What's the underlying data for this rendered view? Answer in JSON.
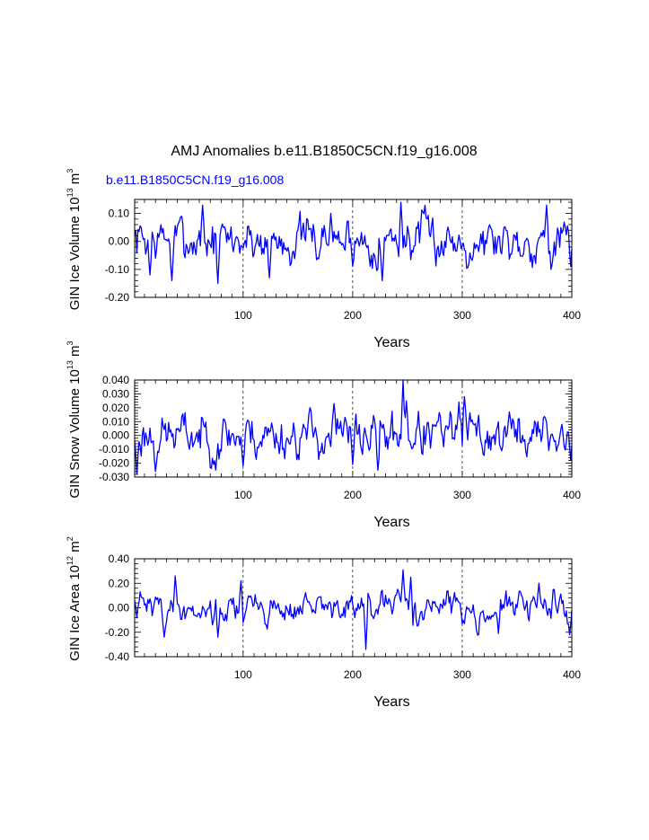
{
  "figure": {
    "title": "AMJ Anomalies b.e11.B1850C5CN.f19_g16.008",
    "legend_label": "b.e11.B1850C5CN.f19_g16.008",
    "line_color": "#0000ff",
    "grid_color": "#000000"
  },
  "chart_data": [
    {
      "type": "line",
      "ylabel": {
        "main": "GIN Ice Volume 10",
        "exp": "13",
        "unit": " m",
        "unit_exp": "3"
      },
      "xlabel": "Years",
      "xlim": [
        1,
        400
      ],
      "ylim": [
        -0.2,
        0.15
      ],
      "xticks": [
        100,
        200,
        300,
        400
      ],
      "xtick_labels": [
        "100",
        "200",
        "300",
        "400"
      ],
      "yticks": [
        -0.2,
        -0.1,
        0.0,
        0.1
      ],
      "ytick_labels": [
        "-0.20",
        "-0.10",
        "0.00",
        "0.10"
      ],
      "vgrid": [
        100,
        200,
        300
      ],
      "series": [
        {
          "name": "b.e11.B1850C5CN.f19_g16.008",
          "x_start": 1,
          "x_step": 1,
          "seed": 7,
          "amp": 0.055,
          "ar": 0.62,
          "min": -0.15,
          "max": 0.14,
          "peaks": [
            [
              15,
              -0.12
            ],
            [
              35,
              -0.14
            ],
            [
              63,
              0.13
            ],
            [
              77,
              -0.15
            ],
            [
              124,
              -0.13
            ],
            [
              180,
              0.1
            ],
            [
              227,
              -0.14
            ],
            [
              244,
              0.14
            ],
            [
              377,
              0.13
            ],
            [
              399,
              -0.09
            ]
          ]
        }
      ]
    },
    {
      "type": "line",
      "ylabel": {
        "main": "GIN Snow Volume 10",
        "exp": "13",
        "unit": " m",
        "unit_exp": "3"
      },
      "xlabel": "Years",
      "xlim": [
        1,
        400
      ],
      "ylim": [
        -0.03,
        0.04
      ],
      "xticks": [
        100,
        200,
        300,
        400
      ],
      "xtick_labels": [
        "100",
        "200",
        "300",
        "400"
      ],
      "yticks": [
        -0.03,
        -0.02,
        -0.01,
        0.0,
        0.01,
        0.02,
        0.03,
        0.04
      ],
      "ytick_labels": [
        "-0.030",
        "-0.020",
        "-0.010",
        "0.000",
        "0.010",
        "0.020",
        "0.030",
        "0.040"
      ],
      "vgrid": [
        100,
        200,
        300
      ],
      "series": [
        {
          "name": "b.e11.B1850C5CN.f19_g16.008",
          "x_start": 1,
          "x_step": 1,
          "seed": 23,
          "amp": 0.011,
          "ar": 0.6,
          "min": -0.028,
          "max": 0.04,
          "peaks": [
            [
              3,
              -0.028
            ],
            [
              20,
              -0.026
            ],
            [
              75,
              -0.025
            ],
            [
              100,
              -0.022
            ],
            [
              183,
              0.023
            ],
            [
              200,
              -0.021
            ],
            [
              223,
              -0.025
            ],
            [
              246,
              0.04
            ],
            [
              249,
              0.025
            ],
            [
              297,
              0.024
            ],
            [
              302,
              0.028
            ],
            [
              343,
              0.017
            ],
            [
              399,
              -0.018
            ]
          ]
        }
      ]
    },
    {
      "type": "line",
      "ylabel": {
        "main": "GIN Ice Area 10",
        "exp": "12",
        "unit": " m",
        "unit_exp": "2"
      },
      "xlabel": "Years",
      "xlim": [
        1,
        400
      ],
      "ylim": [
        -0.4,
        0.4
      ],
      "xticks": [
        100,
        200,
        300,
        400
      ],
      "xtick_labels": [
        "100",
        "200",
        "300",
        "400"
      ],
      "yticks": [
        -0.4,
        -0.2,
        0.0,
        0.2,
        0.4
      ],
      "ytick_labels": [
        "-0.40",
        "-0.20",
        "0.00",
        "0.20",
        "0.40"
      ],
      "vgrid": [
        100,
        200,
        300
      ],
      "series": [
        {
          "name": "b.e11.B1850C5CN.f19_g16.008",
          "x_start": 1,
          "x_step": 1,
          "seed": 41,
          "amp": 0.08,
          "ar": 0.7,
          "min": -0.34,
          "max": 0.31,
          "peaks": [
            [
              28,
              -0.24
            ],
            [
              38,
              0.26
            ],
            [
              77,
              -0.24
            ],
            [
              98,
              0.22
            ],
            [
              212,
              -0.34
            ],
            [
              246,
              0.31
            ],
            [
              253,
              0.25
            ],
            [
              333,
              -0.21
            ],
            [
              370,
              0.2
            ],
            [
              398,
              -0.22
            ]
          ]
        }
      ]
    }
  ]
}
